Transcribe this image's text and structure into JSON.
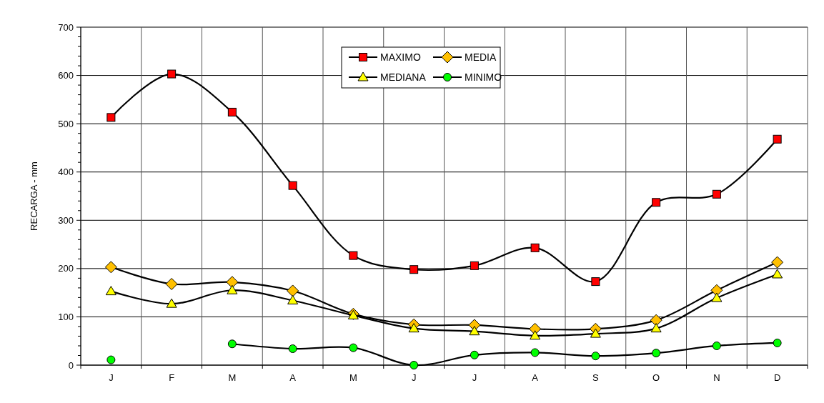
{
  "chart_data": {
    "type": "line",
    "ylabel": "RECARGA - mm",
    "categories": [
      "J",
      "F",
      "M",
      "A",
      "M",
      "J",
      "J",
      "A",
      "S",
      "O",
      "N",
      "D"
    ],
    "series": [
      {
        "name": "MAXIMO",
        "color": "#ff0000",
        "marker": "square",
        "values": [
          513,
          603,
          524,
          372,
          227,
          198,
          206,
          243,
          173,
          337,
          354,
          468
        ]
      },
      {
        "name": "MEDIA",
        "color": "#ffc000",
        "marker": "diamond",
        "values": [
          203,
          168,
          172,
          154,
          106,
          84,
          83,
          75,
          75,
          93,
          155,
          213
        ]
      },
      {
        "name": "MEDIANA",
        "color": "#ffff00",
        "marker": "triangle",
        "values": [
          153,
          127,
          155,
          134,
          103,
          76,
          70,
          61,
          65,
          76,
          139,
          188
        ]
      },
      {
        "name": "MINIMO",
        "color": "#00ff00",
        "marker": "circle",
        "values": [
          11,
          null,
          44,
          34,
          36,
          0,
          21,
          26,
          19,
          25,
          40,
          46
        ]
      }
    ],
    "ylim": [
      0,
      700
    ],
    "yticks": [
      0,
      {
        "value": 20,
        "label": null
      },
      {
        "value": 40,
        "label": null
      },
      {
        "value": 60,
        "label": null
      },
      {
        "value": 80,
        "label": null
      },
      100,
      {
        "value": 120,
        "label": null
      },
      {
        "value": 140,
        "label": null
      },
      {
        "value": 160,
        "label": null
      },
      {
        "value": 180,
        "label": null
      },
      200,
      {
        "value": 220,
        "label": null
      },
      {
        "value": 240,
        "label": null
      },
      {
        "value": 260,
        "label": null
      },
      {
        "value": 280,
        "label": null
      },
      300,
      {
        "value": 320,
        "label": null
      },
      {
        "value": 340,
        "label": null
      },
      {
        "value": 360,
        "label": null
      },
      {
        "value": 380,
        "label": null
      },
      400,
      {
        "value": 420,
        "label": null
      },
      {
        "value": 440,
        "label": null
      },
      {
        "value": 460,
        "label": null
      },
      {
        "value": 480,
        "label": null
      },
      500,
      {
        "value": 520,
        "label": null
      },
      {
        "value": 540,
        "label": null
      },
      {
        "value": 560,
        "label": null
      },
      {
        "value": 580,
        "label": null
      },
      600,
      {
        "value": 620,
        "label": null
      },
      {
        "value": 640,
        "label": null
      },
      {
        "value": 660,
        "label": null
      },
      {
        "value": 680,
        "label": null
      },
      700
    ],
    "grid": true,
    "legend": "top",
    "line_style": "solid"
  }
}
